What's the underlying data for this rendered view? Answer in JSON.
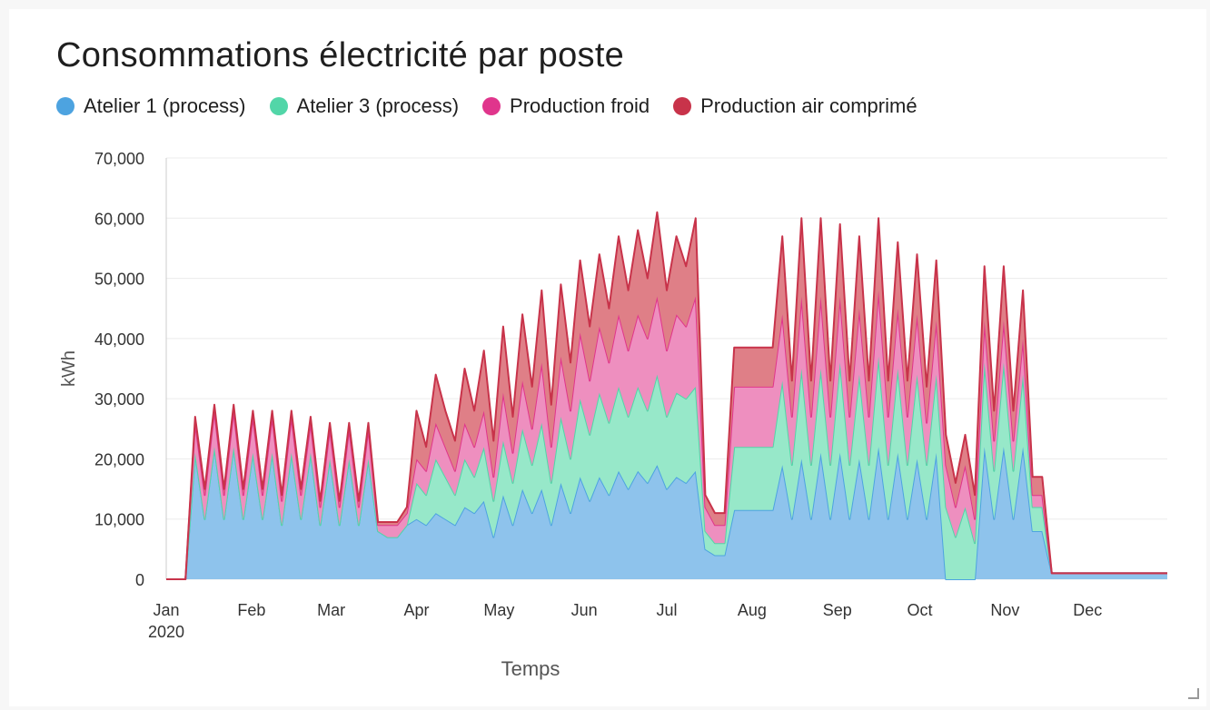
{
  "chart_data": {
    "type": "area",
    "stacked": true,
    "title": "Consommations électricité par poste",
    "xlabel": "Temps",
    "ylabel": "kWh",
    "ylim": [
      0,
      70000
    ],
    "yticks": [
      "0",
      "10,000",
      "20,000",
      "30,000",
      "40,000",
      "50,000",
      "60,000",
      "70,000"
    ],
    "xticks": [
      "Jan",
      "Feb",
      "Mar",
      "Apr",
      "May",
      "Jun",
      "Jul",
      "Aug",
      "Sep",
      "Oct",
      "Nov",
      "Dec"
    ],
    "xtick_year": "2020",
    "legend_position": "top-left",
    "grid": true,
    "x_unit": "week-of-2020",
    "x": [
      0,
      0.5,
      1,
      1.5,
      2,
      2.5,
      3,
      3.5,
      4,
      4.5,
      5,
      5.5,
      6,
      6.5,
      7,
      7.5,
      8,
      8.5,
      9,
      9.5,
      10,
      10.5,
      11,
      11.5,
      12,
      12.5,
      13,
      13.5,
      14,
      14.5,
      15,
      15.5,
      16,
      16.5,
      17,
      17.5,
      18,
      18.5,
      19,
      19.5,
      20,
      20.5,
      21,
      21.5,
      22,
      22.5,
      23,
      23.5,
      24,
      24.5,
      25,
      25.5,
      26,
      26.5,
      27,
      27.5,
      28,
      28.5,
      29,
      29.5,
      30,
      30.5,
      31,
      31.5,
      32,
      32.5,
      33,
      33.5,
      34,
      34.5,
      35,
      35.5,
      36,
      36.5,
      37,
      37.5,
      38,
      38.5,
      39,
      39.5,
      40,
      40.5,
      41,
      41.5,
      42,
      42.5,
      43,
      43.5,
      44,
      44.5,
      45,
      45.5,
      46,
      46.5,
      47,
      47.5,
      48,
      48.5,
      49,
      49.5,
      50,
      50.5,
      51,
      51.5,
      52
    ],
    "series": [
      {
        "name": "Atelier 1 (process)",
        "color": "#4da3e0",
        "fill": "#8ec3ec",
        "values": [
          0,
          0,
          0,
          21000,
          10000,
          22000,
          10000,
          22000,
          10000,
          21000,
          10000,
          21000,
          9000,
          21000,
          10000,
          21000,
          9000,
          20000,
          9000,
          20000,
          9000,
          20000,
          8000,
          7000,
          7000,
          9000,
          10000,
          9000,
          11000,
          10000,
          9000,
          12000,
          11000,
          13000,
          7000,
          14000,
          9000,
          15000,
          11000,
          15000,
          9000,
          16000,
          11000,
          17000,
          13000,
          17000,
          14000,
          18000,
          15000,
          18000,
          16000,
          19000,
          15000,
          17000,
          16000,
          18000,
          5000,
          4000,
          4000,
          11500,
          11500,
          11500,
          11500,
          11500,
          19000,
          10000,
          20000,
          10000,
          21000,
          10000,
          21000,
          10000,
          20000,
          10000,
          22000,
          10000,
          21000,
          10000,
          20000,
          10000,
          21000,
          0,
          0,
          0,
          0,
          22000,
          10000,
          22000,
          10000,
          22000,
          8000,
          8000,
          1000,
          1000,
          1000,
          1000,
          1000,
          1000,
          1000,
          1000,
          1000,
          1000,
          1000,
          1000,
          1000
        ]
      },
      {
        "name": "Atelier 3 (process)",
        "color": "#52d6a8",
        "fill": "#97e8c9",
        "values": [
          0,
          0,
          0,
          0,
          0,
          0,
          0,
          0,
          0,
          0,
          0,
          0,
          0,
          0,
          0,
          0,
          0,
          0,
          0,
          0,
          0,
          0,
          0,
          0,
          0,
          0,
          6000,
          5000,
          9000,
          7000,
          5000,
          8000,
          6000,
          9000,
          6000,
          9000,
          7000,
          10000,
          8000,
          11000,
          7000,
          11000,
          9000,
          13000,
          11000,
          14000,
          12000,
          14000,
          12000,
          14000,
          12000,
          15000,
          12000,
          14000,
          14000,
          14000,
          3000,
          2000,
          2000,
          10500,
          10500,
          10500,
          10500,
          10500,
          14000,
          9000,
          15000,
          9000,
          14000,
          9000,
          15000,
          9000,
          14000,
          9000,
          15000,
          9000,
          14000,
          9000,
          14000,
          9000,
          13000,
          12000,
          7000,
          12000,
          6000,
          14000,
          8000,
          14000,
          8000,
          12000,
          4000,
          4000,
          0,
          0,
          0,
          0,
          0,
          0,
          0,
          0,
          0,
          0,
          0,
          0,
          0
        ]
      },
      {
        "name": "Production froid",
        "color": "#e0358c",
        "fill": "#ee8fbf",
        "values": [
          0,
          0,
          0,
          5000,
          4000,
          6000,
          4000,
          6000,
          4000,
          6000,
          4000,
          6000,
          4000,
          6000,
          4000,
          5000,
          3000,
          5000,
          3000,
          5000,
          3000,
          5000,
          1000,
          2000,
          2000,
          2000,
          4000,
          4000,
          6000,
          5000,
          4000,
          6000,
          5000,
          6000,
          4000,
          8000,
          5000,
          8000,
          6000,
          10000,
          6000,
          10000,
          8000,
          11000,
          9000,
          11000,
          10000,
          12000,
          11000,
          12000,
          12000,
          13000,
          11000,
          13000,
          12000,
          15000,
          4000,
          3000,
          3000,
          10000,
          10000,
          10000,
          10000,
          10000,
          11000,
          8000,
          12000,
          8000,
          12000,
          8000,
          11000,
          8000,
          11000,
          8000,
          11000,
          8000,
          10000,
          8000,
          10000,
          7000,
          9000,
          7000,
          5000,
          7000,
          4000,
          7000,
          5000,
          7000,
          5000,
          6000,
          2000,
          2000,
          0,
          0,
          0,
          0,
          0,
          0,
          0,
          0,
          0,
          0,
          0,
          0,
          0
        ]
      },
      {
        "name": "Production air comprimé",
        "color": "#c8334a",
        "fill": "#df7f87",
        "values": [
          0,
          0,
          0,
          1000,
          1000,
          1000,
          1000,
          1000,
          1000,
          1000,
          1000,
          1000,
          1000,
          1000,
          1000,
          1000,
          1000,
          1000,
          1000,
          1000,
          1000,
          1000,
          500,
          500,
          500,
          1000,
          8000,
          4000,
          8000,
          6000,
          5000,
          9000,
          6000,
          10000,
          6000,
          11000,
          6000,
          11000,
          7000,
          12000,
          7000,
          12000,
          8000,
          12000,
          9000,
          12000,
          9000,
          13000,
          10000,
          14000,
          10000,
          14000,
          10000,
          13000,
          10000,
          13000,
          2000,
          2000,
          2000,
          6500,
          6500,
          6500,
          6500,
          6500,
          13000,
          6000,
          13000,
          6000,
          13000,
          6000,
          12000,
          6000,
          12000,
          6000,
          12000,
          6000,
          11000,
          6000,
          10000,
          6000,
          10000,
          5000,
          4000,
          5000,
          4000,
          9000,
          5000,
          9000,
          5000,
          8000,
          3000,
          3000,
          0,
          0,
          0,
          0,
          0,
          0,
          0,
          0,
          0,
          0,
          0,
          0,
          0
        ]
      }
    ]
  }
}
